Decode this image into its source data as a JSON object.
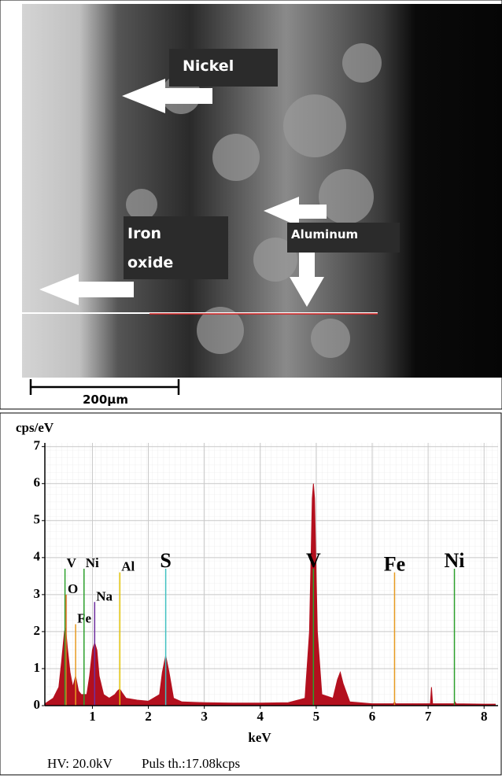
{
  "image": {
    "labels": {
      "nickel": "Nickel",
      "iron": "Iron",
      "oxide": "oxide",
      "aluminum": "Aluminum"
    },
    "scale_bar": "200μm"
  },
  "chart_data": {
    "type": "area",
    "y_label": "cps/eV",
    "x_label": "keV",
    "xlim": [
      0.15,
      8.25
    ],
    "ylim": [
      0,
      7.1
    ],
    "xticks": [
      1,
      2,
      3,
      4,
      5,
      6,
      7,
      8
    ],
    "yticks": [
      0,
      1,
      2,
      3,
      4,
      5,
      6,
      7
    ],
    "grid": true,
    "series": [
      {
        "color": "#b3101e",
        "x": [
          0.15,
          0.3,
          0.4,
          0.45,
          0.5,
          0.52,
          0.55,
          0.6,
          0.65,
          0.7,
          0.75,
          0.8,
          0.9,
          0.95,
          1.0,
          1.04,
          1.08,
          1.12,
          1.2,
          1.3,
          1.4,
          1.45,
          1.49,
          1.53,
          1.6,
          1.8,
          2.0,
          2.2,
          2.25,
          2.31,
          2.37,
          2.45,
          2.6,
          3.0,
          3.5,
          4.0,
          4.5,
          4.8,
          4.88,
          4.93,
          4.95,
          4.97,
          5.02,
          5.1,
          5.3,
          5.38,
          5.43,
          5.48,
          5.6,
          6.0,
          6.38,
          6.4,
          6.42,
          6.8,
          7.04,
          7.06,
          7.08,
          7.46,
          7.48,
          7.5,
          8.0,
          8.2
        ],
        "values": [
          0.05,
          0.2,
          0.5,
          1.2,
          2.0,
          2.1,
          1.6,
          0.9,
          0.5,
          0.8,
          0.4,
          0.3,
          0.3,
          0.8,
          1.5,
          1.7,
          1.5,
          0.8,
          0.3,
          0.2,
          0.3,
          0.4,
          0.45,
          0.35,
          0.2,
          0.15,
          0.12,
          0.3,
          0.9,
          1.35,
          0.9,
          0.2,
          0.1,
          0.08,
          0.07,
          0.07,
          0.08,
          0.2,
          2.0,
          5.6,
          6.0,
          5.6,
          2.0,
          0.3,
          0.2,
          0.7,
          0.9,
          0.6,
          0.1,
          0.05,
          0.05,
          0.1,
          0.05,
          0.05,
          0.05,
          0.5,
          0.05,
          0.05,
          0.1,
          0.05,
          0.04,
          0.04
        ]
      }
    ],
    "markers": [
      {
        "label": "V",
        "x": 0.51,
        "y": 3.7,
        "color": "#2ca02c"
      },
      {
        "label": "O",
        "x": 0.53,
        "y": 3.0,
        "color": "#e07020"
      },
      {
        "label": "Fe",
        "x": 0.7,
        "y": 2.2,
        "color": "#e69a20"
      },
      {
        "label": "Ni",
        "x": 0.85,
        "y": 3.7,
        "color": "#2ca02c"
      },
      {
        "label": "Na",
        "x": 1.04,
        "y": 2.8,
        "color": "#7030a0"
      },
      {
        "label": "Al",
        "x": 1.49,
        "y": 3.6,
        "color": "#e0c000"
      },
      {
        "label": "S",
        "x": 2.31,
        "y": 3.7,
        "color": "#40c0c0"
      },
      {
        "label": "V",
        "x": 4.95,
        "y": 3.7,
        "color": "#2ca02c"
      },
      {
        "label": "Fe",
        "x": 6.4,
        "y": 3.6,
        "color": "#e69a20"
      },
      {
        "label": "Ni",
        "x": 7.47,
        "y": 3.7,
        "color": "#2ca02c"
      }
    ],
    "footer": [
      "HV: 20.0kV",
      "Puls th.:17.08kcps"
    ]
  }
}
